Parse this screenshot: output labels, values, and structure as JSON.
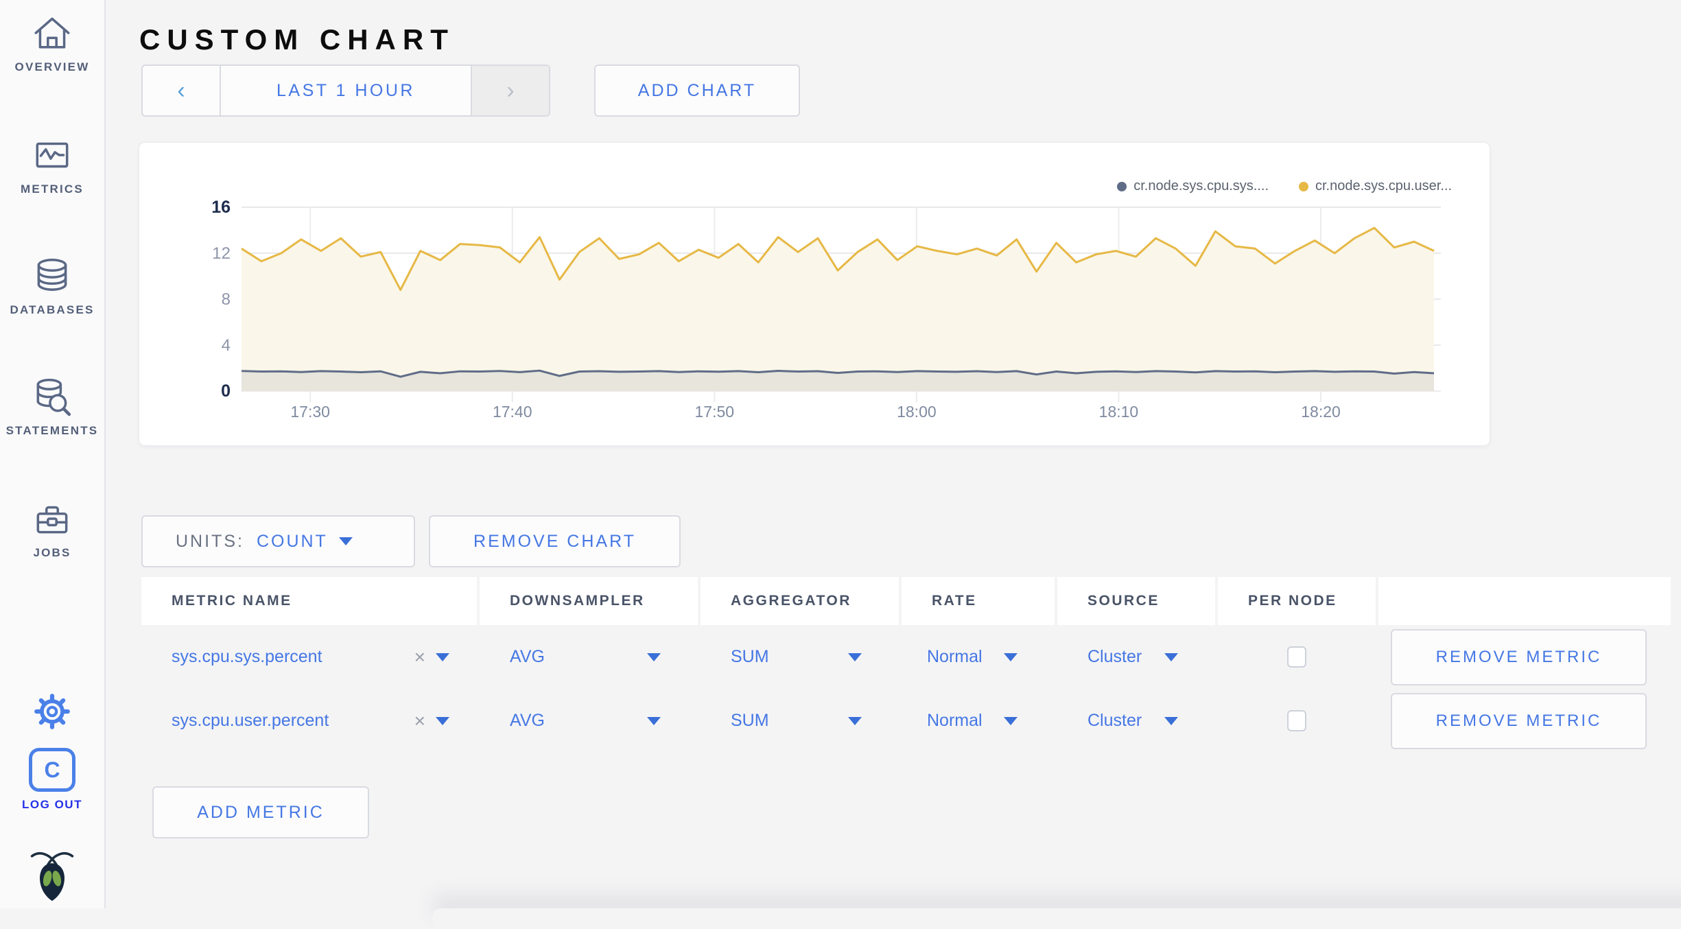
{
  "theme": {
    "accent_blue": "#4577e4",
    "logout_blue": "#2531e8",
    "sidebar_icon": "#5a6885"
  },
  "sidebar": {
    "items": [
      {
        "label": "OVERVIEW",
        "icon": "home-icon"
      },
      {
        "label": "METRICS",
        "icon": "metrics-icon"
      },
      {
        "label": "DATABASES",
        "icon": "database-icon"
      },
      {
        "label": "STATEMENTS",
        "icon": "statements-icon"
      },
      {
        "label": "JOBS",
        "icon": "briefcase-icon"
      }
    ],
    "logout": {
      "label": "LOG OUT",
      "letter": "C"
    }
  },
  "header": {
    "title": "CUSTOM CHART"
  },
  "time_selector": {
    "prev": "‹",
    "label": "LAST 1 HOUR",
    "next": "›"
  },
  "add_chart_label": "ADD CHART",
  "chart_data": {
    "type": "line",
    "title": "",
    "xlabel": "",
    "ylabel": "",
    "x_ticks": [
      "17:30",
      "17:40",
      "17:50",
      "18:00",
      "18:10",
      "18:20"
    ],
    "x_start_min": -3.4,
    "x_end_min": 55.6,
    "y_ticks": [
      0,
      4,
      8,
      12,
      16
    ],
    "ylim": [
      0,
      16
    ],
    "grid": true,
    "legend_position": "top-right",
    "series": [
      {
        "name": "cr.node.sys.cpu.sys....",
        "color": "#5f6c87",
        "fill": "rgba(110,118,140,0.13)",
        "values": [
          1.75,
          1.7,
          1.72,
          1.66,
          1.74,
          1.7,
          1.64,
          1.72,
          1.25,
          1.68,
          1.55,
          1.72,
          1.7,
          1.75,
          1.65,
          1.78,
          1.32,
          1.7,
          1.73,
          1.68,
          1.7,
          1.74,
          1.66,
          1.72,
          1.69,
          1.74,
          1.64,
          1.76,
          1.7,
          1.73,
          1.58,
          1.7,
          1.72,
          1.66,
          1.74,
          1.7,
          1.68,
          1.73,
          1.66,
          1.74,
          1.45,
          1.7,
          1.55,
          1.68,
          1.72,
          1.66,
          1.74,
          1.7,
          1.63,
          1.74,
          1.7,
          1.72,
          1.64,
          1.7,
          1.74,
          1.68,
          1.72,
          1.7,
          1.52,
          1.66,
          1.55
        ]
      },
      {
        "name": "cr.node.sys.cpu.user...",
        "color": "#e6b845",
        "fill": "#faf6e9",
        "values": [
          12.4,
          11.3,
          12.0,
          13.2,
          12.2,
          13.3,
          11.7,
          12.1,
          8.8,
          12.2,
          11.4,
          12.8,
          12.7,
          12.5,
          11.2,
          13.4,
          9.7,
          12.1,
          13.3,
          11.5,
          11.9,
          12.9,
          11.3,
          12.3,
          11.6,
          12.8,
          11.2,
          13.4,
          12.1,
          13.3,
          10.5,
          12.1,
          13.2,
          11.4,
          12.6,
          12.2,
          11.9,
          12.4,
          11.8,
          13.2,
          10.4,
          12.9,
          11.2,
          11.9,
          12.2,
          11.7,
          13.3,
          12.4,
          10.9,
          13.9,
          12.6,
          12.4,
          11.1,
          12.2,
          13.1,
          12.0,
          13.3,
          14.2,
          12.5,
          13.0,
          12.2
        ]
      }
    ]
  },
  "units_bar": {
    "units_label": "UNITS:",
    "units_value": "COUNT",
    "remove_chart_label": "REMOVE CHART"
  },
  "table": {
    "headers": [
      "METRIC NAME",
      "DOWNSAMPLER",
      "AGGREGATOR",
      "RATE",
      "SOURCE",
      "PER NODE",
      ""
    ],
    "rows": [
      {
        "metric": "sys.cpu.sys.percent",
        "clear": "×",
        "downsampler": "AVG",
        "aggregator": "SUM",
        "rate": "Normal",
        "source": "Cluster",
        "per_node_checked": false,
        "remove_label": "REMOVE METRIC"
      },
      {
        "metric": "sys.cpu.user.percent",
        "clear": "×",
        "downsampler": "AVG",
        "aggregator": "SUM",
        "rate": "Normal",
        "source": "Cluster",
        "per_node_checked": false,
        "remove_label": "REMOVE METRIC"
      }
    ]
  },
  "add_metric_label": "ADD METRIC"
}
